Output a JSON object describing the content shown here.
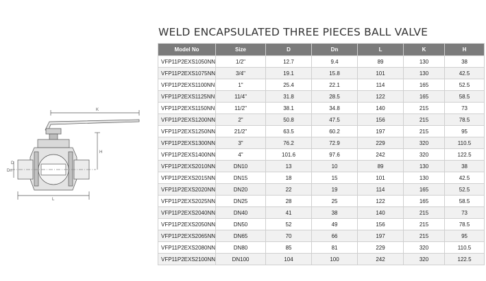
{
  "title": "WELD ENCAPSULATED THREE PIECES BALL VALVE",
  "colors": {
    "header_bg": "#7b7b7b",
    "header_text": "#ffffff",
    "grid": "#cfcfcf",
    "row_alt": "#f1f1f1"
  },
  "drawing": {
    "labels": {
      "length": "L",
      "height": "H",
      "width": "K",
      "dn": "Dn",
      "d": "D"
    }
  },
  "table": {
    "headers": [
      "Model No",
      "Size",
      "D",
      "Dn",
      "L",
      "K",
      "H"
    ],
    "rows": [
      [
        "VFP11P2EXS1050NN",
        "1/2\"",
        "12.7",
        "9.4",
        "89",
        "130",
        "38"
      ],
      [
        "VFP11P2EXS1075NN",
        "3/4\"",
        "19.1",
        "15.8",
        "101",
        "130",
        "42.5"
      ],
      [
        "VFP11P2EXS1100NN",
        "1\"",
        "25.4",
        "22.1",
        "114",
        "165",
        "52.5"
      ],
      [
        "VFP11P2EXS1125NN",
        "11/4\"",
        "31.8",
        "28.5",
        "122",
        "165",
        "58.5"
      ],
      [
        "VFP11P2EXS1150NN",
        "11/2\"",
        "38.1",
        "34.8",
        "140",
        "215",
        "73"
      ],
      [
        "VFP11P2EXS1200NN",
        "2\"",
        "50.8",
        "47.5",
        "156",
        "215",
        "78.5"
      ],
      [
        "VFP11P2EXS1250NN",
        "21/2\"",
        "63.5",
        "60.2",
        "197",
        "215",
        "95"
      ],
      [
        "VFP11P2EXS1300NN",
        "3\"",
        "76.2",
        "72.9",
        "229",
        "320",
        "110.5"
      ],
      [
        "VFP11P2EXS1400NN",
        "4\"",
        "101.6",
        "97.6",
        "242",
        "320",
        "122.5"
      ],
      [
        "VFP11P2EXS2010NN",
        "DN10",
        "13",
        "10",
        "89",
        "130",
        "38"
      ],
      [
        "VFP11P2EXS2015NN",
        "DN15",
        "18",
        "15",
        "101",
        "130",
        "42.5"
      ],
      [
        "VFP11P2EXS2020NN",
        "DN20",
        "22",
        "19",
        "114",
        "165",
        "52.5"
      ],
      [
        "VFP11P2EXS2025NN",
        "DN25",
        "28",
        "25",
        "122",
        "165",
        "58.5"
      ],
      [
        "VFP11P2EXS2040NN",
        "DN40",
        "41",
        "38",
        "140",
        "215",
        "73"
      ],
      [
        "VFP11P2EXS2050NN",
        "DN50",
        "52",
        "49",
        "156",
        "215",
        "78.5"
      ],
      [
        "VFP11P2EXS2065NN",
        "DN65",
        "70",
        "66",
        "197",
        "215",
        "95"
      ],
      [
        "VFP11P2EXS2080NN",
        "DN80",
        "85",
        "81",
        "229",
        "320",
        "110.5"
      ],
      [
        "VFP11P2EXS2100NN",
        "DN100",
        "104",
        "100",
        "242",
        "320",
        "122.5"
      ]
    ]
  }
}
